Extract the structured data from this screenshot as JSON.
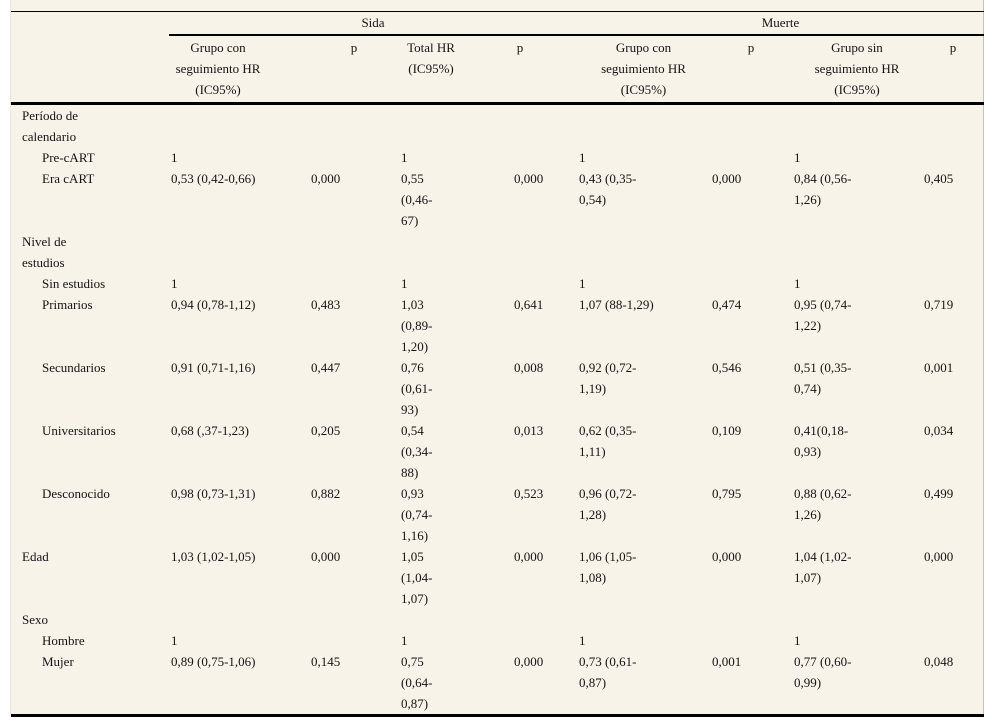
{
  "colors": {
    "paper_background": "#f7f3e9",
    "rule_color": "#000000",
    "text_color": "#141414"
  },
  "table": {
    "group_headers": {
      "sida": "Sida",
      "muerte": "Muerte"
    },
    "column_headers": {
      "c2": "Grupo con\nseguimiento HR\n(IC95%)",
      "c3": "p",
      "c4": "Total HR\n(IC95%)",
      "c5": "p",
      "c6": "Grupo con\nseguimiento HR\n(IC95%)",
      "c7": "p",
      "c8": "Grupo sin\nseguimiento HR\n(IC95%)",
      "c9": "p"
    },
    "rows": [
      {
        "label": "Período de\ncalendario",
        "cells": [
          "",
          "",
          "",
          "",
          "",
          "",
          "",
          ""
        ]
      },
      {
        "label": "Pre-cART",
        "cells": [
          "1",
          "",
          "1",
          "",
          "1",
          "",
          "1",
          ""
        ]
      },
      {
        "label": "Era cART",
        "cells": [
          "0,53 (0,42-0,66)",
          "0,000",
          "0,55\n(0,46-\n67)",
          "0,000",
          "0,43 (0,35-\n0,54)",
          "0,000",
          "0,84 (0,56-\n1,26)",
          "0,405"
        ]
      },
      {
        "label": "Nivel de\nestudios",
        "cells": [
          "",
          "",
          "",
          "",
          "",
          "",
          "",
          ""
        ]
      },
      {
        "label": "Sin estudios",
        "cells": [
          "1",
          "",
          "1",
          "",
          "1",
          "",
          "1",
          ""
        ]
      },
      {
        "label": "Primarios",
        "cells": [
          "0,94 (0,78-1,12)",
          "0,483",
          "1,03\n(0,89-\n1,20)",
          "0,641",
          "1,07 (88-1,29)",
          "0,474",
          "0,95 (0,74-\n1,22)",
          "0,719"
        ]
      },
      {
        "label": "Secundarios",
        "cells": [
          "0,91 (0,71-1,16)",
          "0,447",
          "0,76\n(0,61-\n93)",
          "0,008",
          "0,92 (0,72-\n1,19)",
          "0,546",
          "0,51 (0,35-\n0,74)",
          "0,001"
        ]
      },
      {
        "label": "Universitarios",
        "cells": [
          "0,68 (,37-1,23)",
          "0,205",
          "0,54\n(0,34-\n88)",
          "0,013",
          "0,62 (0,35-\n1,11)",
          "0,109",
          "0,41(0,18-\n0,93)",
          "0,034"
        ]
      },
      {
        "label": "Desconocido",
        "cells": [
          "0,98 (0,73-1,31)",
          "0,882",
          "0,93\n(0,74-\n1,16)",
          "0,523",
          "0,96 (0,72-\n1,28)",
          "0,795",
          "0,88 (0,62-\n1,26)",
          "0,499"
        ]
      },
      {
        "label": "Edad",
        "cells": [
          "1,03 (1,02-1,05)",
          "0,000",
          "1,05\n(1,04-\n1,07)",
          "0,000",
          "1,06 (1,05-\n1,08)",
          "0,000",
          "1,04 (1,02-\n1,07)",
          "0,000"
        ]
      },
      {
        "label": "Sexo",
        "cells": [
          "",
          "",
          "",
          "",
          "",
          "",
          "",
          ""
        ]
      },
      {
        "label": "Hombre",
        "cells": [
          "1",
          "",
          "1",
          "",
          "1",
          "",
          "1",
          ""
        ]
      },
      {
        "label": "Mujer",
        "cells": [
          "0,89 (0,75-1,06)",
          "0,145",
          "0,75\n(0,64-\n0,87)",
          "0,000",
          "0,73 (0,61-\n0,87)",
          "0,001",
          "0,77 (0,60-\n0,99)",
          "0,048"
        ]
      }
    ]
  }
}
